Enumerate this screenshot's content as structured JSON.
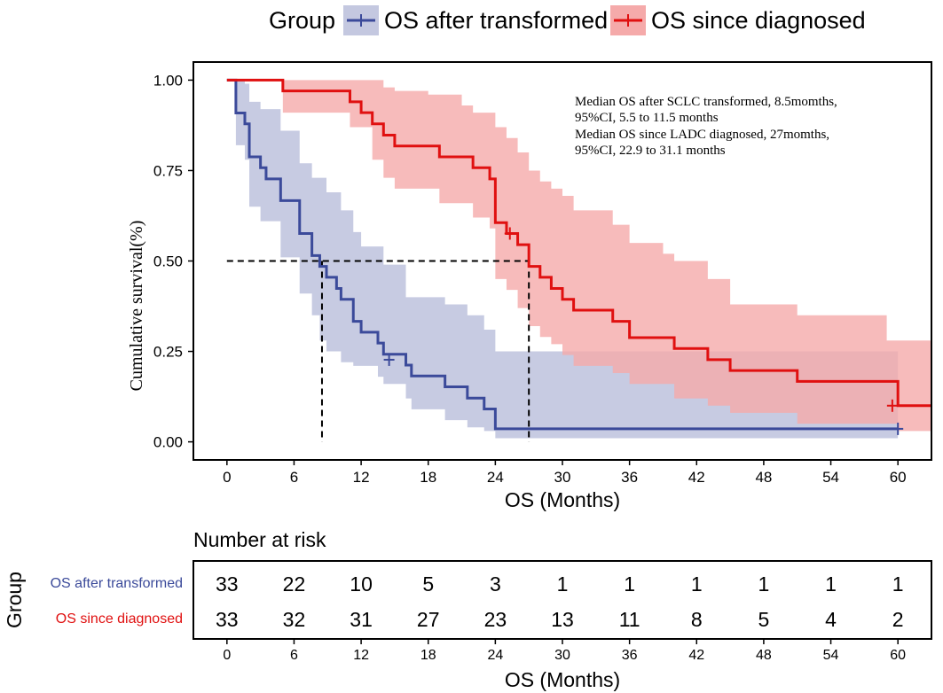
{
  "legend": {
    "title": "Group",
    "items": [
      {
        "label": "OS after transformed",
        "color": "#3b4a9a",
        "fill": "#c4c8e0"
      },
      {
        "label": "OS since diagnosed",
        "color": "#e01010",
        "fill": "#f5aaaa"
      }
    ]
  },
  "annotation": {
    "lines": [
      "Median OS after SCLC transformed, 8.5momths,",
      "95%CI, 5.5 to 11.5 months",
      "Median OS since LADC diagnosed, 27momths,",
      "95%CI, 22.9 to 31.1 months"
    ]
  },
  "chart_data": {
    "type": "line",
    "subtype": "kaplan-meier",
    "xlabel": "OS (Months)",
    "ylabel": "Cumulative survival(%)",
    "xlim": [
      -3,
      63
    ],
    "ylim": [
      -0.05,
      1.05
    ],
    "xticks": [
      0,
      6,
      12,
      18,
      24,
      30,
      36,
      42,
      48,
      54,
      60
    ],
    "yticks": [
      0.0,
      0.25,
      0.5,
      0.75,
      1.0
    ],
    "ytick_labels": [
      "0.00",
      "0.25",
      "0.50",
      "0.75",
      "1.00"
    ],
    "medians": [
      8.5,
      27
    ],
    "median_level": 0.5,
    "series": [
      {
        "name": "OS after transformed",
        "color": "#3b4a9a",
        "ci_color": "#c4c8e0",
        "steps": [
          [
            0,
            1.0
          ],
          [
            0.8,
            0.909
          ],
          [
            1.6,
            0.879
          ],
          [
            2.0,
            0.788
          ],
          [
            3.0,
            0.758
          ],
          [
            3.5,
            0.727
          ],
          [
            4.8,
            0.667
          ],
          [
            6.5,
            0.576
          ],
          [
            7.6,
            0.515
          ],
          [
            8.3,
            0.485
          ],
          [
            8.9,
            0.455
          ],
          [
            9.8,
            0.424
          ],
          [
            10.2,
            0.394
          ],
          [
            11.3,
            0.333
          ],
          [
            12.0,
            0.303
          ],
          [
            13.5,
            0.273
          ],
          [
            14.0,
            0.242
          ],
          [
            16.0,
            0.212
          ],
          [
            16.5,
            0.182
          ],
          [
            19.5,
            0.152
          ],
          [
            21.5,
            0.121
          ],
          [
            23.0,
            0.091
          ],
          [
            24.0,
            0.036
          ],
          [
            60,
            0.036
          ]
        ],
        "ci_upper": [
          [
            0,
            1.0
          ],
          [
            0.8,
            1.0
          ],
          [
            1.6,
            0.99
          ],
          [
            2.0,
            0.94
          ],
          [
            3.0,
            0.92
          ],
          [
            4.8,
            0.86
          ],
          [
            6.5,
            0.77
          ],
          [
            7.6,
            0.73
          ],
          [
            8.9,
            0.69
          ],
          [
            10.2,
            0.64
          ],
          [
            11.3,
            0.58
          ],
          [
            12.0,
            0.54
          ],
          [
            14.0,
            0.49
          ],
          [
            16.0,
            0.4
          ],
          [
            19.5,
            0.38
          ],
          [
            21.5,
            0.35
          ],
          [
            23.0,
            0.31
          ],
          [
            24.0,
            0.25
          ],
          [
            60,
            0.25
          ]
        ],
        "ci_lower": [
          [
            0,
            1.0
          ],
          [
            0.8,
            0.82
          ],
          [
            1.6,
            0.78
          ],
          [
            2.0,
            0.65
          ],
          [
            3.0,
            0.61
          ],
          [
            4.8,
            0.51
          ],
          [
            6.5,
            0.41
          ],
          [
            7.6,
            0.35
          ],
          [
            8.3,
            0.28
          ],
          [
            8.9,
            0.25
          ],
          [
            10.2,
            0.22
          ],
          [
            11.3,
            0.21
          ],
          [
            13.5,
            0.18
          ],
          [
            14.0,
            0.16
          ],
          [
            16.0,
            0.12
          ],
          [
            16.5,
            0.09
          ],
          [
            19.5,
            0.06
          ],
          [
            21.5,
            0.04
          ],
          [
            23.0,
            0.03
          ],
          [
            24.0,
            0.01
          ],
          [
            60,
            0.01
          ]
        ],
        "censor": [
          [
            14.5,
            0.227
          ],
          [
            60,
            0.036
          ]
        ]
      },
      {
        "name": "OS since diagnosed",
        "color": "#e01010",
        "ci_color": "#f5aaaa",
        "steps": [
          [
            0,
            1.0
          ],
          [
            5.0,
            0.97
          ],
          [
            11.0,
            0.94
          ],
          [
            12.0,
            0.91
          ],
          [
            13.0,
            0.879
          ],
          [
            14.0,
            0.848
          ],
          [
            15.0,
            0.818
          ],
          [
            18.0,
            0.818
          ],
          [
            19.0,
            0.788
          ],
          [
            21.0,
            0.788
          ],
          [
            22.0,
            0.758
          ],
          [
            23.5,
            0.727
          ],
          [
            24.0,
            0.606
          ],
          [
            25.0,
            0.576
          ],
          [
            26.0,
            0.545
          ],
          [
            27.0,
            0.485
          ],
          [
            28.0,
            0.455
          ],
          [
            29.0,
            0.424
          ],
          [
            30.0,
            0.394
          ],
          [
            31.0,
            0.364
          ],
          [
            33.0,
            0.364
          ],
          [
            34.5,
            0.333
          ],
          [
            36.0,
            0.288
          ],
          [
            39.0,
            0.288
          ],
          [
            40.0,
            0.258
          ],
          [
            43.0,
            0.227
          ],
          [
            45.0,
            0.197
          ],
          [
            51.0,
            0.167
          ],
          [
            60,
            0.1
          ],
          [
            63,
            0.1
          ]
        ],
        "ci_upper": [
          [
            0,
            1.0
          ],
          [
            5.0,
            1.0
          ],
          [
            11.0,
            1.0
          ],
          [
            14.0,
            0.98
          ],
          [
            15.0,
            0.97
          ],
          [
            18.0,
            0.96
          ],
          [
            21.0,
            0.93
          ],
          [
            22.0,
            0.91
          ],
          [
            24.0,
            0.87
          ],
          [
            25.0,
            0.84
          ],
          [
            26.0,
            0.8
          ],
          [
            27.0,
            0.75
          ],
          [
            28.0,
            0.72
          ],
          [
            29.0,
            0.7
          ],
          [
            30.0,
            0.68
          ],
          [
            31.0,
            0.64
          ],
          [
            33.0,
            0.64
          ],
          [
            34.5,
            0.6
          ],
          [
            36.0,
            0.55
          ],
          [
            39.0,
            0.52
          ],
          [
            40.0,
            0.5
          ],
          [
            43.0,
            0.45
          ],
          [
            45.0,
            0.38
          ],
          [
            51.0,
            0.35
          ],
          [
            59.0,
            0.28
          ],
          [
            63,
            0.28
          ]
        ],
        "ci_lower": [
          [
            0,
            1.0
          ],
          [
            5.0,
            0.91
          ],
          [
            11.0,
            0.87
          ],
          [
            13.0,
            0.78
          ],
          [
            14.0,
            0.73
          ],
          [
            15.0,
            0.7
          ],
          [
            19.0,
            0.66
          ],
          [
            22.0,
            0.62
          ],
          [
            23.5,
            0.59
          ],
          [
            24.0,
            0.45
          ],
          [
            25.0,
            0.42
          ],
          [
            26.0,
            0.37
          ],
          [
            27.0,
            0.32
          ],
          [
            28.0,
            0.29
          ],
          [
            29.0,
            0.27
          ],
          [
            30.0,
            0.24
          ],
          [
            31.0,
            0.21
          ],
          [
            34.5,
            0.19
          ],
          [
            36.0,
            0.16
          ],
          [
            40.0,
            0.12
          ],
          [
            43.0,
            0.1
          ],
          [
            45.0,
            0.08
          ],
          [
            51.0,
            0.05
          ],
          [
            60,
            0.03
          ],
          [
            63,
            0.03
          ]
        ],
        "censor": [
          [
            25.3,
            0.576
          ],
          [
            59.5,
            0.1
          ]
        ]
      }
    ]
  },
  "risk_table": {
    "title": "Number at risk",
    "group_label": "Group",
    "xlabel": "OS (Months)",
    "times": [
      "0",
      "6",
      "12",
      "18",
      "24",
      "30",
      "36",
      "42",
      "48",
      "54",
      "60"
    ],
    "rows": [
      {
        "label": "OS after transformed",
        "color": "#3b4a9a",
        "values": [
          "33",
          "22",
          "10",
          "5",
          "3",
          "1",
          "1",
          "1",
          "1",
          "1",
          "1"
        ]
      },
      {
        "label": "OS since diagnosed",
        "color": "#e01010",
        "values": [
          "33",
          "32",
          "31",
          "27",
          "23",
          "13",
          "11",
          "8",
          "5",
          "4",
          "2"
        ]
      }
    ]
  }
}
